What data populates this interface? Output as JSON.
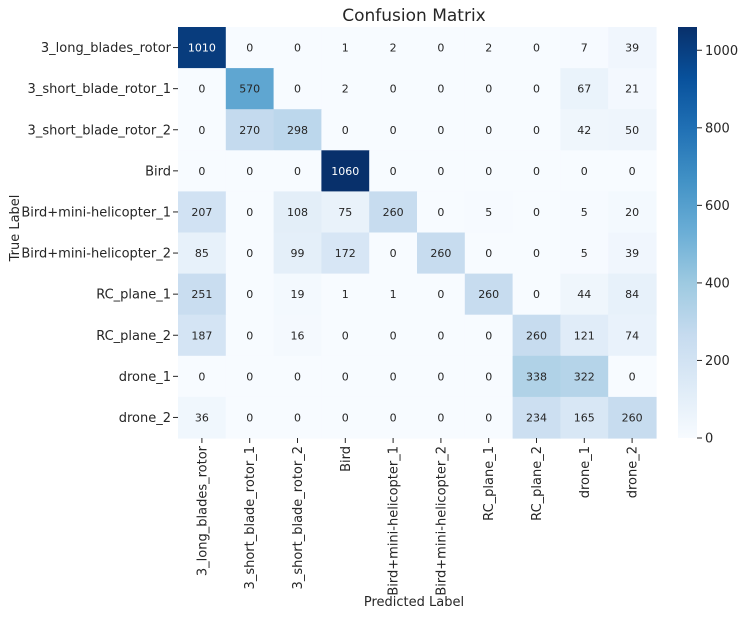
{
  "chart_data": {
    "type": "heatmap",
    "title": "Confusion Matrix",
    "xlabel": "Predicted Label",
    "ylabel": "True Label",
    "row_labels": [
      "3_long_blades_rotor",
      "3_short_blade_rotor_1",
      "3_short_blade_rotor_2",
      "Bird",
      "Bird+mini-helicopter_1",
      "Bird+mini-helicopter_2",
      "RC_plane_1",
      "RC_plane_2",
      "drone_1",
      "drone_2"
    ],
    "col_labels": [
      "3_long_blades_rotor",
      "3_short_blade_rotor_1",
      "3_short_blade_rotor_2",
      "Bird",
      "Bird+mini-helicopter_1",
      "Bird+mini-helicopter_2",
      "RC_plane_1",
      "RC_plane_2",
      "drone_1",
      "drone_2"
    ],
    "values": [
      [
        1010,
        0,
        0,
        1,
        2,
        0,
        2,
        0,
        7,
        39
      ],
      [
        0,
        570,
        0,
        2,
        0,
        0,
        0,
        0,
        67,
        21
      ],
      [
        0,
        270,
        298,
        0,
        0,
        0,
        0,
        0,
        42,
        50
      ],
      [
        0,
        0,
        0,
        1060,
        0,
        0,
        0,
        0,
        0,
        0
      ],
      [
        207,
        0,
        108,
        75,
        260,
        0,
        5,
        0,
        5,
        20
      ],
      [
        85,
        0,
        99,
        172,
        0,
        260,
        0,
        0,
        5,
        39
      ],
      [
        251,
        0,
        19,
        1,
        1,
        0,
        260,
        0,
        44,
        84
      ],
      [
        187,
        0,
        16,
        0,
        0,
        0,
        0,
        260,
        121,
        74
      ],
      [
        0,
        0,
        0,
        0,
        0,
        0,
        0,
        338,
        322,
        0
      ],
      [
        36,
        0,
        0,
        0,
        0,
        0,
        0,
        234,
        165,
        260
      ]
    ],
    "colorbar": {
      "min": 0,
      "max": 1060,
      "ticks": [
        0,
        200,
        400,
        600,
        800,
        1000
      ],
      "colormap": "Blues"
    },
    "grid": false,
    "legend": "colorbar-right"
  }
}
